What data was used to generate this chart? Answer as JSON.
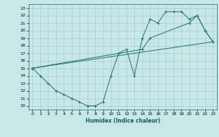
{
  "xlabel": "Humidex (Indice chaleur)",
  "ylabel": "",
  "bg_color": "#c8e8e8",
  "grid_color": "#a8cece",
  "line_color": "#2e7878",
  "marker": "+",
  "xlim": [
    -0.5,
    23.5
  ],
  "ylim": [
    9.5,
    23.5
  ],
  "xticks": [
    0,
    1,
    2,
    3,
    4,
    5,
    6,
    7,
    8,
    9,
    10,
    11,
    12,
    13,
    14,
    15,
    16,
    17,
    18,
    19,
    20,
    21,
    22,
    23
  ],
  "yticks": [
    10,
    11,
    12,
    13,
    14,
    15,
    16,
    17,
    18,
    19,
    20,
    21,
    22,
    23
  ],
  "line1_x": [
    0,
    1,
    2,
    3,
    4,
    5,
    6,
    7,
    8,
    9,
    10,
    11,
    12,
    13,
    14,
    15,
    16,
    17,
    18,
    19,
    20,
    21,
    22,
    23
  ],
  "line1_y": [
    15,
    14,
    13,
    12,
    11.5,
    11,
    10.5,
    10,
    10,
    10.5,
    14,
    17,
    17.5,
    14,
    19,
    21.5,
    21,
    22.5,
    22.5,
    22.5,
    21.5,
    22,
    20,
    18.5
  ],
  "line2_x": [
    0,
    23
  ],
  "line2_y": [
    15,
    18.5
  ],
  "line3_x": [
    0,
    14,
    15,
    20,
    21,
    22,
    23
  ],
  "line3_y": [
    15,
    17.5,
    19,
    21,
    22,
    20,
    18.5
  ]
}
